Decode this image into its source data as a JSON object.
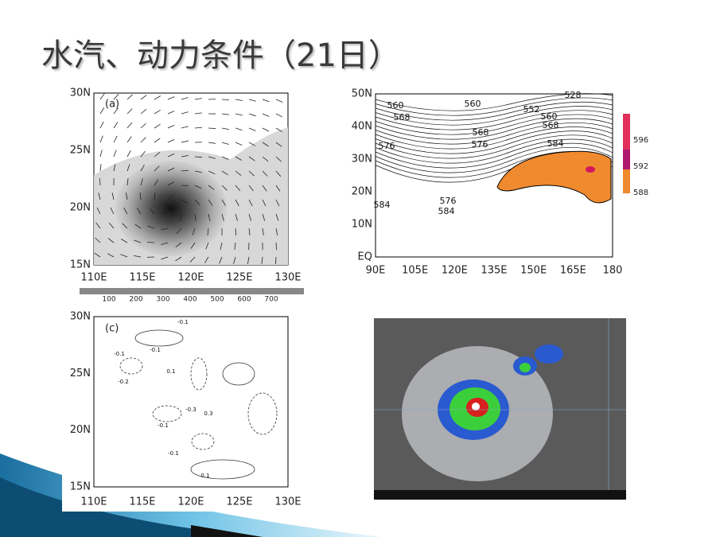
{
  "title": "水汽、动力条件（21日）",
  "panels": [
    {
      "label": "(a)",
      "yticks": [
        "30N",
        "25N",
        "20N",
        "15N"
      ],
      "xticks": [
        "110E",
        "115E",
        "120E",
        "125E",
        "130E"
      ],
      "colorbar": [
        "100",
        "200",
        "300",
        "400",
        "500",
        "600",
        "700"
      ]
    },
    {
      "yticks": [
        "50N",
        "40N",
        "30N",
        "20N",
        "10N",
        "EQ"
      ],
      "xticks": [
        "90E",
        "105E",
        "120E",
        "135E",
        "150E",
        "165E",
        "180"
      ],
      "contours": [
        "528",
        "560",
        "560",
        "568",
        "552",
        "560",
        "568",
        "568",
        "576",
        "584",
        "576",
        "576",
        "584",
        "584"
      ],
      "legend": [
        "596",
        "592",
        "588"
      ]
    },
    {
      "label": "(c)",
      "yticks": [
        "30N",
        "25N",
        "20N",
        "15N"
      ],
      "xticks": [
        "110E",
        "115E",
        "120E",
        "125E",
        "130E"
      ],
      "contours": [
        "-0.1",
        "-0.1",
        "-0.2",
        "-0.1",
        "0.1",
        "-0.1",
        "-0.3",
        "0.3",
        "-0.1",
        "0.1"
      ]
    }
  ]
}
